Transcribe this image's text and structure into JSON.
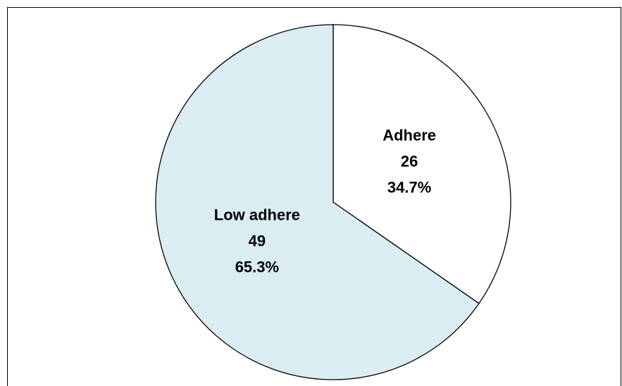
{
  "chart_data": {
    "type": "pie",
    "categories": [
      "Adhere",
      "Low adhere"
    ],
    "values": [
      26,
      49
    ],
    "percent_labels": [
      "34.7%",
      "65.3%"
    ],
    "colors": [
      "#ffffff",
      "#daedf3"
    ]
  }
}
